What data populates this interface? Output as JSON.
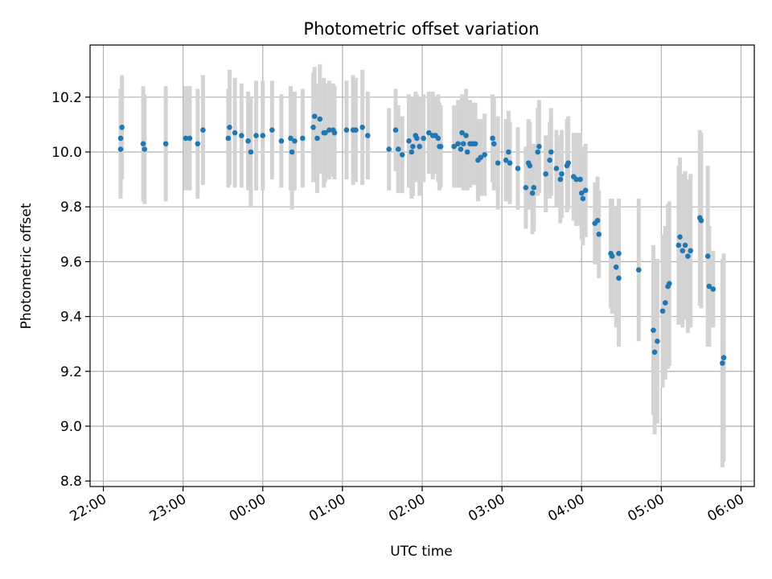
{
  "chart_data": {
    "type": "scatter",
    "title": "Photometric offset variation",
    "xlabel": "UTC time",
    "ylabel": "Photometric offset",
    "x_unit": "UTC hours (22:00 on day 1 through 06:00 on day 2)",
    "x_ticks": [
      "22:00",
      "23:00",
      "00:00",
      "01:00",
      "02:00",
      "03:00",
      "04:00",
      "05:00",
      "06:00"
    ],
    "y_ticks": [
      "8.8",
      "9.0",
      "9.2",
      "9.4",
      "9.6",
      "9.8",
      "10.0",
      "10.2"
    ],
    "xlim": [
      "21:50",
      "06:10"
    ],
    "ylim": [
      8.78,
      10.39
    ],
    "grid": true,
    "colors": {
      "marker": "#1f77b4",
      "errorbar": "#d3d3d3",
      "grid": "#b0b0b0"
    },
    "points": [
      [
        "22:13",
        10.01,
        0.18
      ],
      [
        "22:13",
        10.05,
        0.18
      ],
      [
        "22:14",
        10.09,
        0.19
      ],
      [
        "22:30",
        10.03,
        0.21
      ],
      [
        "22:31",
        10.01,
        0.2
      ],
      [
        "22:47",
        10.03,
        0.21
      ],
      [
        "23:02",
        10.05,
        0.19
      ],
      [
        "23:05",
        10.05,
        0.19
      ],
      [
        "23:11",
        10.03,
        0.2
      ],
      [
        "23:15",
        10.08,
        0.2
      ],
      [
        "23:34",
        10.05,
        0.18
      ],
      [
        "23:35",
        10.09,
        0.21
      ],
      [
        "23:39",
        10.07,
        0.2
      ],
      [
        "23:44",
        10.06,
        0.19
      ],
      [
        "23:49",
        10.04,
        0.18
      ],
      [
        "23:51",
        10.0,
        0.2
      ],
      [
        "23:55",
        10.06,
        0.2
      ],
      [
        "00:00",
        10.06,
        0.2
      ],
      [
        "00:07",
        10.08,
        0.18
      ],
      [
        "00:14",
        10.04,
        0.17
      ],
      [
        "00:21",
        10.05,
        0.19
      ],
      [
        "00:22",
        10.0,
        0.21
      ],
      [
        "00:24",
        10.04,
        0.18
      ],
      [
        "00:30",
        10.05,
        0.18
      ],
      [
        "00:38",
        10.09,
        0.2
      ],
      [
        "00:39",
        10.13,
        0.18
      ],
      [
        "00:41",
        10.05,
        0.2
      ],
      [
        "00:43",
        10.12,
        0.2
      ],
      [
        "00:46",
        10.07,
        0.2
      ],
      [
        "00:47",
        10.07,
        0.18
      ],
      [
        "00:50",
        10.08,
        0.18
      ],
      [
        "00:53",
        10.08,
        0.17
      ],
      [
        "00:54",
        10.07,
        0.17
      ],
      [
        "01:03",
        10.08,
        0.18
      ],
      [
        "01:08",
        10.08,
        0.2
      ],
      [
        "01:10",
        10.08,
        0.19
      ],
      [
        "01:15",
        10.09,
        0.21
      ],
      [
        "01:19",
        10.06,
        0.16
      ],
      [
        "01:35",
        10.01,
        0.15
      ],
      [
        "01:40",
        10.08,
        0.15
      ],
      [
        "01:42",
        10.01,
        0.16
      ],
      [
        "01:45",
        9.99,
        0.14
      ],
      [
        "01:50",
        10.04,
        0.17
      ],
      [
        "01:52",
        10.0,
        0.17
      ],
      [
        "01:53",
        10.02,
        0.18
      ],
      [
        "01:55",
        10.06,
        0.16
      ],
      [
        "01:56",
        10.05,
        0.16
      ],
      [
        "01:58",
        10.02,
        0.18
      ],
      [
        "02:01",
        10.05,
        0.16
      ],
      [
        "02:05",
        10.07,
        0.15
      ],
      [
        "02:08",
        10.06,
        0.16
      ],
      [
        "02:10",
        10.06,
        0.14
      ],
      [
        "02:12",
        10.05,
        0.16
      ],
      [
        "02:13",
        10.02,
        0.16
      ],
      [
        "02:14",
        10.02,
        0.15
      ],
      [
        "02:24",
        10.02,
        0.15
      ],
      [
        "02:27",
        10.03,
        0.16
      ],
      [
        "02:29",
        10.01,
        0.14
      ],
      [
        "02:30",
        10.07,
        0.14
      ],
      [
        "02:31",
        10.03,
        0.17
      ],
      [
        "02:33",
        10.06,
        0.17
      ],
      [
        "02:34",
        10.0,
        0.14
      ],
      [
        "02:36",
        10.03,
        0.16
      ],
      [
        "02:38",
        10.03,
        0.15
      ],
      [
        "02:40",
        10.03,
        0.15
      ],
      [
        "02:42",
        9.97,
        0.15
      ],
      [
        "02:44",
        9.98,
        0.14
      ],
      [
        "02:47",
        9.99,
        0.15
      ],
      [
        "02:53",
        10.05,
        0.16
      ],
      [
        "02:54",
        10.03,
        0.17
      ],
      [
        "02:57",
        9.96,
        0.17
      ],
      [
        "03:03",
        9.97,
        0.15
      ],
      [
        "03:05",
        10.0,
        0.15
      ],
      [
        "03:06",
        9.96,
        0.15
      ],
      [
        "03:12",
        9.94,
        0.15
      ],
      [
        "03:18",
        9.87,
        0.15
      ],
      [
        "03:20",
        9.96,
        0.16
      ],
      [
        "03:21",
        9.95,
        0.16
      ],
      [
        "03:23",
        9.85,
        0.15
      ],
      [
        "03:24",
        9.87,
        0.16
      ],
      [
        "03:27",
        10.0,
        0.16
      ],
      [
        "03:28",
        10.02,
        0.17
      ],
      [
        "03:33",
        9.92,
        0.14
      ],
      [
        "03:36",
        9.97,
        0.14
      ],
      [
        "03:37",
        10.0,
        0.16
      ],
      [
        "03:41",
        9.94,
        0.14
      ],
      [
        "03:44",
        9.9,
        0.16
      ],
      [
        "03:45",
        9.92,
        0.16
      ],
      [
        "03:49",
        9.95,
        0.17
      ],
      [
        "03:50",
        9.96,
        0.17
      ],
      [
        "03:54",
        9.91,
        0.16
      ],
      [
        "03:56",
        9.9,
        0.17
      ],
      [
        "03:59",
        9.9,
        0.17
      ],
      [
        "04:00",
        9.85,
        0.17
      ],
      [
        "04:01",
        9.83,
        0.17
      ],
      [
        "04:03",
        9.86,
        0.17
      ],
      [
        "04:10",
        9.74,
        0.15
      ],
      [
        "04:12",
        9.75,
        0.16
      ],
      [
        "04:13",
        9.7,
        0.16
      ],
      [
        "04:22",
        9.63,
        0.2
      ],
      [
        "04:23",
        9.62,
        0.21
      ],
      [
        "04:26",
        9.58,
        0.22
      ],
      [
        "04:28",
        9.54,
        0.25
      ],
      [
        "04:28",
        9.63,
        0.2
      ],
      [
        "04:43",
        9.57,
        0.26
      ],
      [
        "04:54",
        9.35,
        0.31
      ],
      [
        "04:55",
        9.27,
        0.3
      ],
      [
        "04:57",
        9.31,
        0.3
      ],
      [
        "05:01",
        9.42,
        0.28
      ],
      [
        "05:03",
        9.45,
        0.28
      ],
      [
        "05:05",
        9.51,
        0.3
      ],
      [
        "05:06",
        9.52,
        0.3
      ],
      [
        "05:13",
        9.66,
        0.29
      ],
      [
        "05:14",
        9.69,
        0.29
      ],
      [
        "05:16",
        9.64,
        0.28
      ],
      [
        "05:18",
        9.66,
        0.27
      ],
      [
        "05:20",
        9.62,
        0.28
      ],
      [
        "05:22",
        9.64,
        0.28
      ],
      [
        "05:29",
        9.76,
        0.32
      ],
      [
        "05:30",
        9.75,
        0.32
      ],
      [
        "05:35",
        9.62,
        0.33
      ],
      [
        "05:36",
        9.51,
        0.22
      ],
      [
        "05:39",
        9.5,
        0.14
      ],
      [
        "05:46",
        9.23,
        0.38
      ],
      [
        "05:47",
        9.25,
        0.38
      ]
    ]
  }
}
